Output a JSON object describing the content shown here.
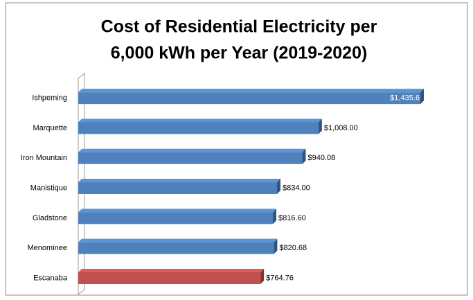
{
  "chart_data": {
    "type": "bar",
    "orientation": "horizontal",
    "title": [
      "Cost of Residential Electricity per",
      "6,000 kWh per Year (2019-2020)"
    ],
    "categories": [
      "Ishpeming",
      "Marquette",
      "Iron Mountain",
      "Manistique",
      "Gladstone",
      "Menominee",
      "Escanaba"
    ],
    "values": [
      1435.6,
      1008.0,
      940.08,
      834.0,
      816.6,
      820.68,
      764.76
    ],
    "value_labels": [
      "$1,435.6",
      "$1,008.00",
      "$940.08",
      "$834.00",
      "$816.60",
      "$820.68",
      "$764.76"
    ],
    "colors": [
      "#4f81bd",
      "#4f81bd",
      "#4f81bd",
      "#4f81bd",
      "#4f81bd",
      "#4f81bd",
      "#c0504d"
    ]
  }
}
